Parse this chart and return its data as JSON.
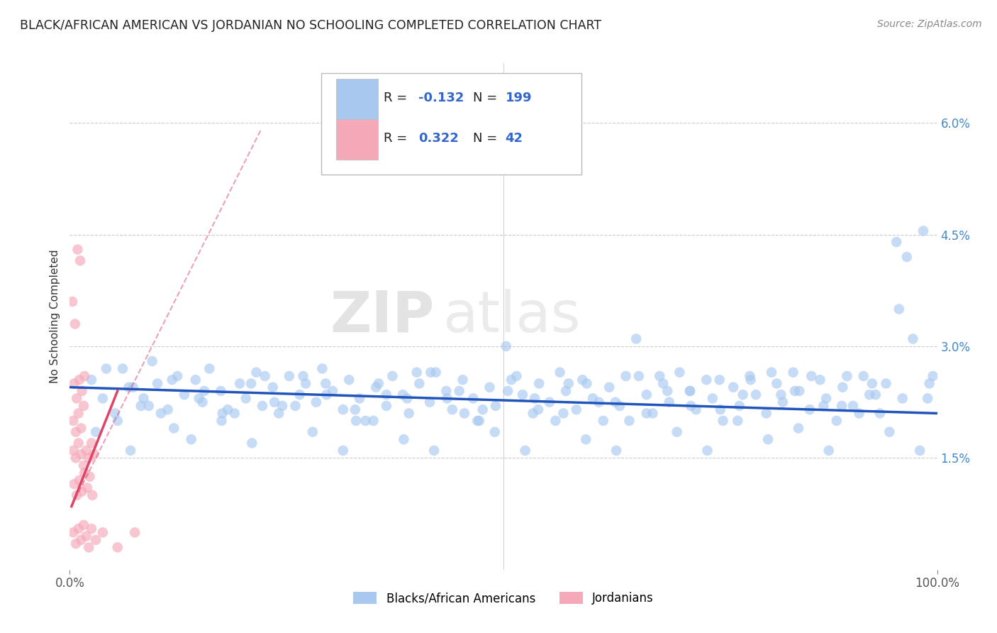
{
  "title": "BLACK/AFRICAN AMERICAN VS JORDANIAN NO SCHOOLING COMPLETED CORRELATION CHART",
  "source": "Source: ZipAtlas.com",
  "ylabel": "No Schooling Completed",
  "x_min": 0.0,
  "x_max": 100.0,
  "y_min": 0.0,
  "y_max": 6.8,
  "y_ticks": [
    1.5,
    3.0,
    4.5,
    6.0
  ],
  "y_tick_labels": [
    "1.5%",
    "3.0%",
    "4.5%",
    "6.0%"
  ],
  "x_ticks": [
    0,
    100
  ],
  "x_tick_labels": [
    "0.0%",
    "100.0%"
  ],
  "blue_color": "#a8c8f0",
  "pink_color": "#f5a8b8",
  "blue_line_color": "#2255bb",
  "pink_line_color": "#dd4466",
  "blue_scatter": [
    [
      2.5,
      2.55
    ],
    [
      3.8,
      2.3
    ],
    [
      5.2,
      2.1
    ],
    [
      6.1,
      2.7
    ],
    [
      7.3,
      2.45
    ],
    [
      8.2,
      2.2
    ],
    [
      9.5,
      2.8
    ],
    [
      10.1,
      2.5
    ],
    [
      11.3,
      2.15
    ],
    [
      12.4,
      2.6
    ],
    [
      13.2,
      2.35
    ],
    [
      14.5,
      2.55
    ],
    [
      15.3,
      2.25
    ],
    [
      16.1,
      2.7
    ],
    [
      17.4,
      2.4
    ],
    [
      18.2,
      2.15
    ],
    [
      19.6,
      2.5
    ],
    [
      20.3,
      2.3
    ],
    [
      21.5,
      2.65
    ],
    [
      22.2,
      2.2
    ],
    [
      23.4,
      2.45
    ],
    [
      24.1,
      2.1
    ],
    [
      25.3,
      2.6
    ],
    [
      26.5,
      2.35
    ],
    [
      27.2,
      2.5
    ],
    [
      28.4,
      2.25
    ],
    [
      29.1,
      2.7
    ],
    [
      30.3,
      2.4
    ],
    [
      31.5,
      2.15
    ],
    [
      32.2,
      2.55
    ],
    [
      33.4,
      2.3
    ],
    [
      34.1,
      2.0
    ],
    [
      35.3,
      2.45
    ],
    [
      36.5,
      2.2
    ],
    [
      37.2,
      2.6
    ],
    [
      38.4,
      2.35
    ],
    [
      39.1,
      2.1
    ],
    [
      40.3,
      2.5
    ],
    [
      41.5,
      2.25
    ],
    [
      42.2,
      2.65
    ],
    [
      43.4,
      2.4
    ],
    [
      44.1,
      2.15
    ],
    [
      45.3,
      2.55
    ],
    [
      46.5,
      2.3
    ],
    [
      47.2,
      2.0
    ],
    [
      48.4,
      2.45
    ],
    [
      49.1,
      2.2
    ],
    [
      50.3,
      3.0
    ],
    [
      51.5,
      2.6
    ],
    [
      52.2,
      2.35
    ],
    [
      53.4,
      2.1
    ],
    [
      54.1,
      2.5
    ],
    [
      55.3,
      2.25
    ],
    [
      56.5,
      2.65
    ],
    [
      57.2,
      2.4
    ],
    [
      58.4,
      2.15
    ],
    [
      59.1,
      2.55
    ],
    [
      60.3,
      2.3
    ],
    [
      61.5,
      2.0
    ],
    [
      62.2,
      2.45
    ],
    [
      63.4,
      2.2
    ],
    [
      64.1,
      2.6
    ],
    [
      65.3,
      3.1
    ],
    [
      66.5,
      2.35
    ],
    [
      67.2,
      2.1
    ],
    [
      68.4,
      2.5
    ],
    [
      69.1,
      2.25
    ],
    [
      70.3,
      2.65
    ],
    [
      71.5,
      2.4
    ],
    [
      72.2,
      2.15
    ],
    [
      73.4,
      2.55
    ],
    [
      74.1,
      2.3
    ],
    [
      75.3,
      2.0
    ],
    [
      76.5,
      2.45
    ],
    [
      77.2,
      2.2
    ],
    [
      78.4,
      2.6
    ],
    [
      79.1,
      2.35
    ],
    [
      80.3,
      2.1
    ],
    [
      81.5,
      2.5
    ],
    [
      82.2,
      2.25
    ],
    [
      83.4,
      2.65
    ],
    [
      84.1,
      2.4
    ],
    [
      85.3,
      2.15
    ],
    [
      86.5,
      2.55
    ],
    [
      87.2,
      2.3
    ],
    [
      88.4,
      2.0
    ],
    [
      89.1,
      2.45
    ],
    [
      90.3,
      2.2
    ],
    [
      91.5,
      2.6
    ],
    [
      92.2,
      2.35
    ],
    [
      93.4,
      2.1
    ],
    [
      94.1,
      2.5
    ],
    [
      95.3,
      4.4
    ],
    [
      96.5,
      4.2
    ],
    [
      97.2,
      3.1
    ],
    [
      98.4,
      4.55
    ],
    [
      99.1,
      2.5
    ],
    [
      4.2,
      2.7
    ],
    [
      6.8,
      2.45
    ],
    [
      9.1,
      2.2
    ],
    [
      11.8,
      2.55
    ],
    [
      14.9,
      2.3
    ],
    [
      17.6,
      2.1
    ],
    [
      20.9,
      2.5
    ],
    [
      23.6,
      2.25
    ],
    [
      26.9,
      2.6
    ],
    [
      29.6,
      2.35
    ],
    [
      32.9,
      2.15
    ],
    [
      35.6,
      2.5
    ],
    [
      38.9,
      2.3
    ],
    [
      41.6,
      2.65
    ],
    [
      44.9,
      2.4
    ],
    [
      47.6,
      2.15
    ],
    [
      50.9,
      2.55
    ],
    [
      53.6,
      2.3
    ],
    [
      56.9,
      2.1
    ],
    [
      59.6,
      2.5
    ],
    [
      62.9,
      2.25
    ],
    [
      65.6,
      2.6
    ],
    [
      68.9,
      2.4
    ],
    [
      71.6,
      2.2
    ],
    [
      74.9,
      2.55
    ],
    [
      77.6,
      2.35
    ],
    [
      80.9,
      2.65
    ],
    [
      83.6,
      2.4
    ],
    [
      86.9,
      2.2
    ],
    [
      89.6,
      2.6
    ],
    [
      92.9,
      2.35
    ],
    [
      95.6,
      3.5
    ],
    [
      98.9,
      2.3
    ],
    [
      5.5,
      2.0
    ],
    [
      8.5,
      2.3
    ],
    [
      12.0,
      1.9
    ],
    [
      15.5,
      2.4
    ],
    [
      19.0,
      2.1
    ],
    [
      22.5,
      2.6
    ],
    [
      26.0,
      2.2
    ],
    [
      29.5,
      2.5
    ],
    [
      33.0,
      2.0
    ],
    [
      36.5,
      2.35
    ],
    [
      40.0,
      2.65
    ],
    [
      43.5,
      2.3
    ],
    [
      47.0,
      2.0
    ],
    [
      50.5,
      2.4
    ],
    [
      54.0,
      2.15
    ],
    [
      57.5,
      2.5
    ],
    [
      61.0,
      2.25
    ],
    [
      64.5,
      2.0
    ],
    [
      68.0,
      2.6
    ],
    [
      71.5,
      2.4
    ],
    [
      75.0,
      2.15
    ],
    [
      78.5,
      2.55
    ],
    [
      82.0,
      2.35
    ],
    [
      85.5,
      2.6
    ],
    [
      89.0,
      2.2
    ],
    [
      92.5,
      2.5
    ],
    [
      96.0,
      2.3
    ],
    [
      99.5,
      2.6
    ],
    [
      3.0,
      1.85
    ],
    [
      7.0,
      1.6
    ],
    [
      10.5,
      2.1
    ],
    [
      14.0,
      1.75
    ],
    [
      17.5,
      2.0
    ],
    [
      21.0,
      1.7
    ],
    [
      24.5,
      2.2
    ],
    [
      28.0,
      1.85
    ],
    [
      31.5,
      1.6
    ],
    [
      35.0,
      2.0
    ],
    [
      38.5,
      1.75
    ],
    [
      42.0,
      1.6
    ],
    [
      45.5,
      2.1
    ],
    [
      49.0,
      1.85
    ],
    [
      52.5,
      1.6
    ],
    [
      56.0,
      2.0
    ],
    [
      59.5,
      1.75
    ],
    [
      63.0,
      1.6
    ],
    [
      66.5,
      2.1
    ],
    [
      70.0,
      1.85
    ],
    [
      73.5,
      1.6
    ],
    [
      77.0,
      2.0
    ],
    [
      80.5,
      1.75
    ],
    [
      84.0,
      1.9
    ],
    [
      87.5,
      1.6
    ],
    [
      91.0,
      2.1
    ],
    [
      94.5,
      1.85
    ],
    [
      98.0,
      1.6
    ]
  ],
  "pink_scatter": [
    [
      0.4,
      2.0
    ],
    [
      0.7,
      1.85
    ],
    [
      1.0,
      2.1
    ],
    [
      1.3,
      1.9
    ],
    [
      1.6,
      2.2
    ],
    [
      0.5,
      2.5
    ],
    [
      0.8,
      2.3
    ],
    [
      1.1,
      2.55
    ],
    [
      1.4,
      2.4
    ],
    [
      1.7,
      2.6
    ],
    [
      0.3,
      3.6
    ],
    [
      0.6,
      3.3
    ],
    [
      0.9,
      4.3
    ],
    [
      1.2,
      4.15
    ],
    [
      0.4,
      1.6
    ],
    [
      0.7,
      1.5
    ],
    [
      1.0,
      1.7
    ],
    [
      1.3,
      1.55
    ],
    [
      1.6,
      1.4
    ],
    [
      1.9,
      1.6
    ],
    [
      2.2,
      1.5
    ],
    [
      2.5,
      1.7
    ],
    [
      2.8,
      1.55
    ],
    [
      0.5,
      1.15
    ],
    [
      0.8,
      1.0
    ],
    [
      1.1,
      1.2
    ],
    [
      1.4,
      1.05
    ],
    [
      1.7,
      1.3
    ],
    [
      2.0,
      1.1
    ],
    [
      2.3,
      1.25
    ],
    [
      2.6,
      1.0
    ],
    [
      0.4,
      0.5
    ],
    [
      0.7,
      0.35
    ],
    [
      1.0,
      0.55
    ],
    [
      1.3,
      0.4
    ],
    [
      1.6,
      0.6
    ],
    [
      1.9,
      0.45
    ],
    [
      2.2,
      0.3
    ],
    [
      2.5,
      0.55
    ],
    [
      3.0,
      0.4
    ],
    [
      3.8,
      0.5
    ],
    [
      5.5,
      0.3
    ],
    [
      7.5,
      0.5
    ]
  ],
  "blue_trend": {
    "x_start": 0,
    "x_end": 100,
    "y_start": 2.45,
    "y_end": 2.1
  },
  "pink_trend_solid": {
    "x_start": 0.2,
    "x_end": 5.5,
    "y_start": 0.85,
    "y_end": 2.4
  },
  "pink_trend_dashed": {
    "x_start": 0.2,
    "x_end": 22,
    "y_start": 0.85,
    "y_end": 5.9
  },
  "watermark_zip": "ZIP",
  "watermark_atlas": "atlas",
  "background_color": "#ffffff",
  "grid_color": "#cccccc",
  "dot_size": 110,
  "dot_alpha": 0.65
}
